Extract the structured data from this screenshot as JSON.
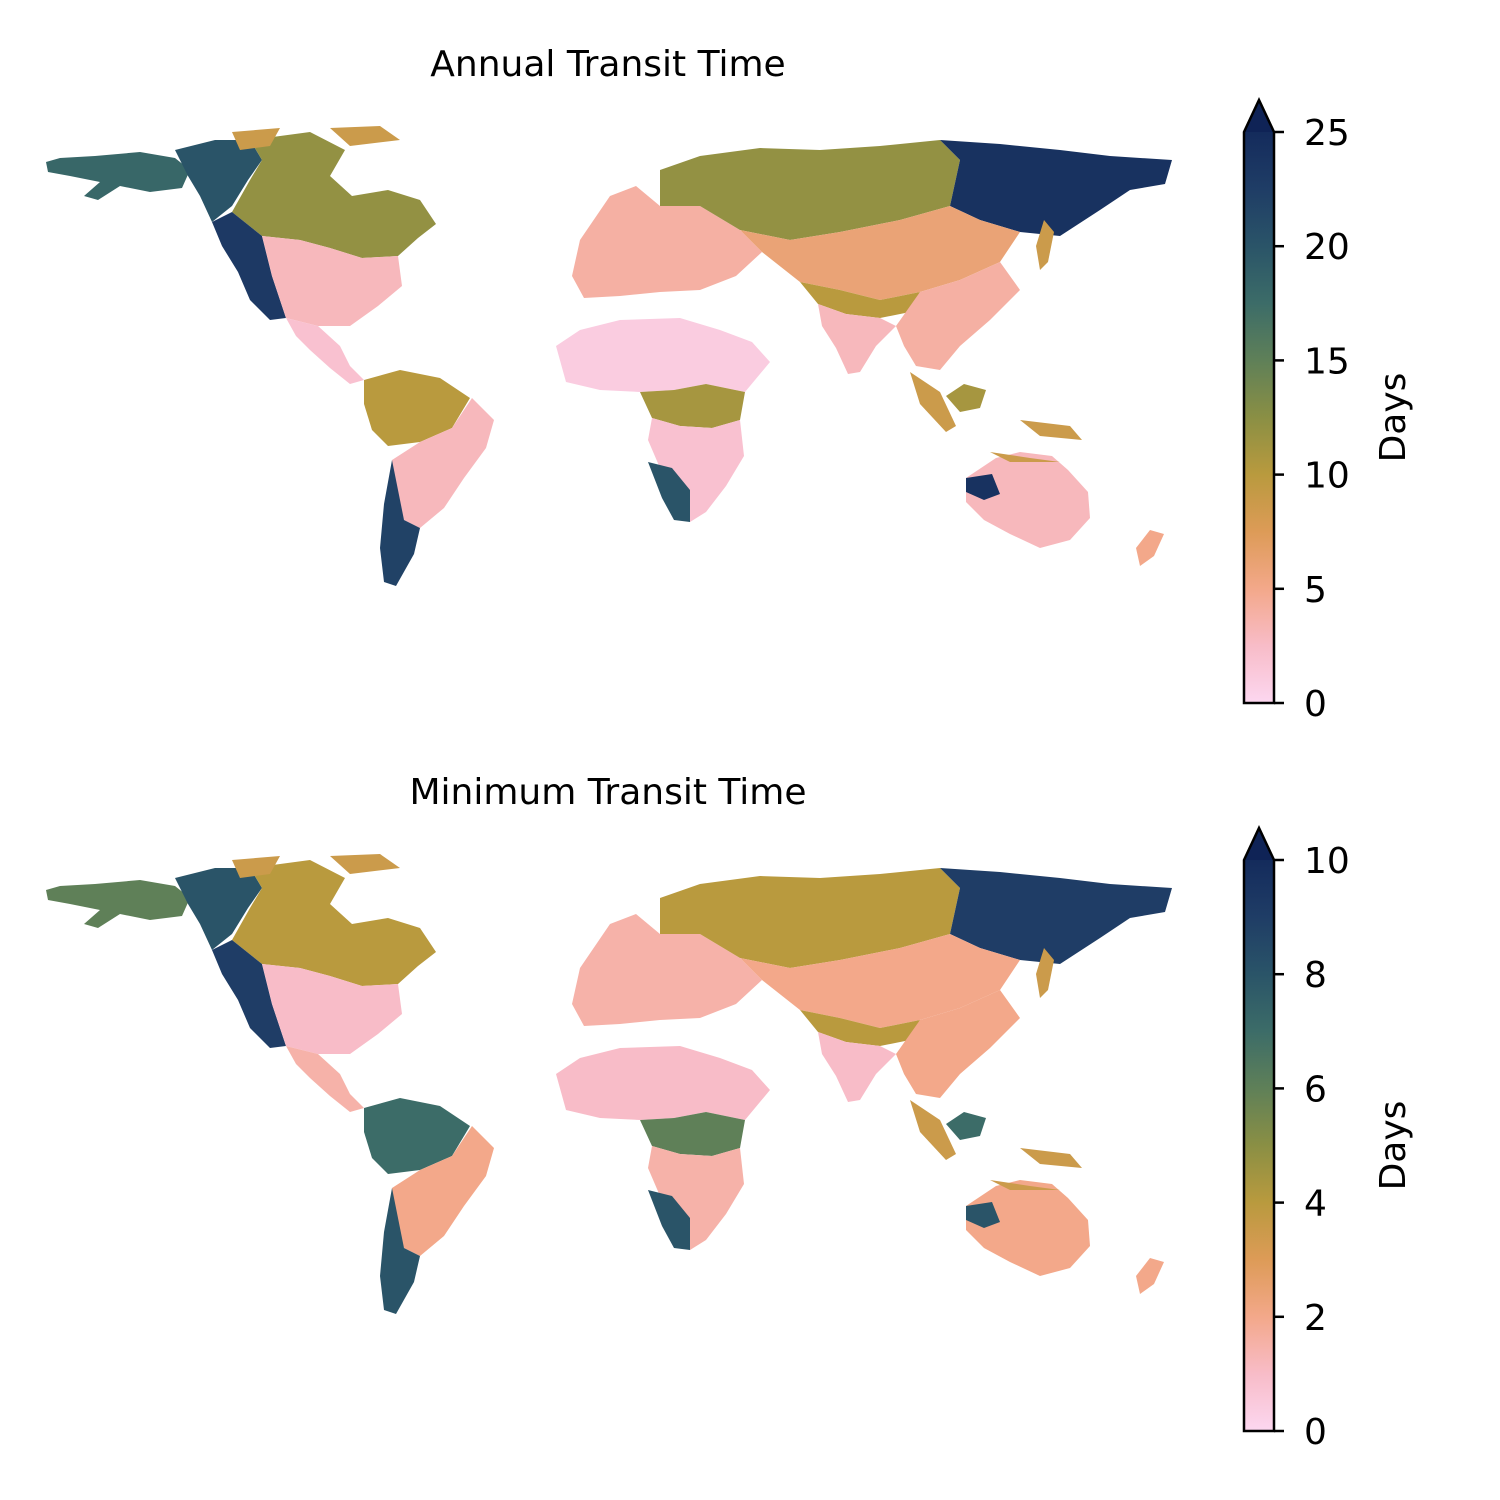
{
  "colormap": {
    "stops": [
      "#fcd7f0",
      "#f8bcc8",
      "#f3a88a",
      "#dd9b57",
      "#b99a3e",
      "#8a8f44",
      "#5f8058",
      "#3c6c68",
      "#2a5468",
      "#1f3d66",
      "#142b5c"
    ],
    "extend_color": "#0f2356"
  },
  "panels": [
    {
      "title": "Annual Transit Time",
      "colorbar": {
        "label": "Days",
        "min": 0,
        "max": 25,
        "extend": "max",
        "ticks": [
          "0",
          "5",
          "10",
          "15",
          "20",
          "25"
        ]
      },
      "region_values": {
        "north_america_north": 12,
        "north_america_south": 3,
        "alaska": 18,
        "canada_west": 20,
        "rockies": 23,
        "central_america": 2,
        "amazon": 10,
        "south_america_east": 3,
        "patagonia": 22,
        "sahara_sahel": 1,
        "congo": 11,
        "southern_africa": 2,
        "kalahari": 20,
        "europe": 4,
        "siberia_west": 12,
        "siberia_east": 24,
        "central_asia": 6,
        "tibet": 10,
        "india": 3,
        "southeast_asia": 4,
        "borneo": 11,
        "australia_inland": 3,
        "australia_west": 24,
        "new_zealand": 5
      }
    },
    {
      "title": "Minimum Transit Time",
      "colorbar": {
        "label": "Days",
        "min": 0,
        "max": 10,
        "extend": "max",
        "ticks": [
          "0",
          "2",
          "4",
          "6",
          "8",
          "10"
        ]
      },
      "region_values": {
        "north_america_north": 4,
        "north_america_south": 1,
        "alaska": 6,
        "canada_west": 8,
        "rockies": 9,
        "central_america": 1.5,
        "amazon": 7,
        "south_america_east": 2,
        "patagonia": 8,
        "sahara_sahel": 1,
        "congo": 6,
        "southern_africa": 1.5,
        "kalahari": 8,
        "europe": 1.5,
        "siberia_west": 4,
        "siberia_east": 9,
        "central_asia": 2,
        "tibet": 4,
        "india": 1,
        "southeast_asia": 2,
        "borneo": 7,
        "australia_inland": 2,
        "australia_west": 8,
        "new_zealand": 2
      }
    }
  ]
}
